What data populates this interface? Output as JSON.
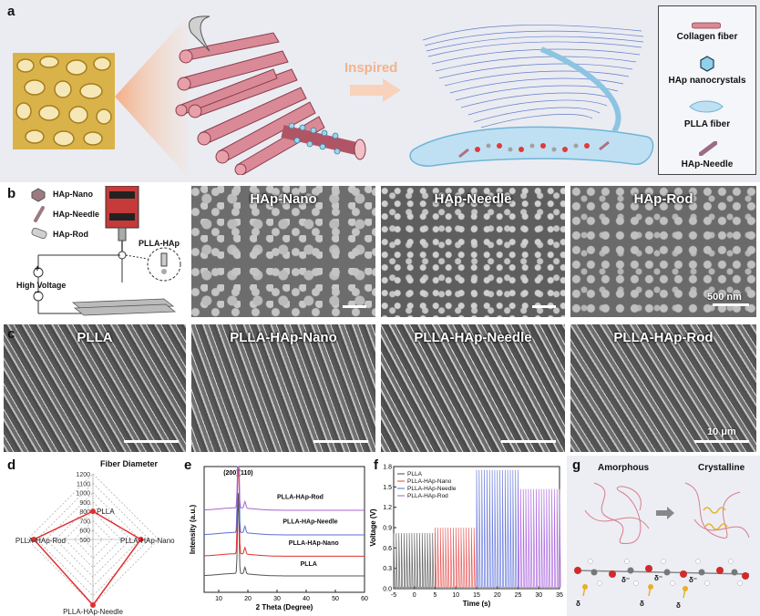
{
  "panel_labels": {
    "a": "a",
    "b": "b",
    "c": "c",
    "d": "d",
    "e": "e",
    "f": "f",
    "g": "g"
  },
  "panel_a": {
    "inspired": "Inspired",
    "legend": [
      "Collagen fiber",
      "HAp nanocrystals",
      "PLLA fiber",
      "HAp-Needle"
    ]
  },
  "panel_b": {
    "legend": [
      "HAp-Nano",
      "HAp-Needle",
      "HAp-Rod"
    ],
    "plla_hap": "PLLA-HAp",
    "high_voltage": "High Voltage",
    "plus": "+",
    "minus": "−",
    "sem_titles": [
      "HAp-Nano",
      "HAp-Needle",
      "HAp-Rod"
    ],
    "scale": "500 nm"
  },
  "panel_c": {
    "sem_titles": [
      "PLLA",
      "PLLA-HAp-Nano",
      "PLLA-HAp-Needle",
      "PLLA-HAp-Rod"
    ],
    "scale": "10 μm"
  },
  "chart_data": [
    {
      "type": "radar",
      "title": "Fiber Diameter",
      "axes": [
        "PLLA",
        "PLLA-HAp-Nano",
        "PLLA-HAp-Needle",
        "PLLA-HAp-Rod"
      ],
      "ticks": [
        500,
        600,
        700,
        800,
        900,
        1000,
        1100,
        1200
      ],
      "range": [
        500,
        1200
      ],
      "values": [
        800,
        1010,
        1200,
        1130
      ],
      "color": "#e03030"
    },
    {
      "type": "line",
      "xlabel": "2 Theta (Degree)",
      "ylabel": "Intensity (a.u.)",
      "xlim": [
        5,
        60
      ],
      "xticks": [
        10,
        20,
        30,
        40,
        50,
        60
      ],
      "peak_label": "(200)(110)",
      "peak_x": 16.7,
      "series": [
        {
          "name": "PLLA",
          "color": "#555555",
          "baseline": 1.0,
          "peak": 5
        },
        {
          "name": "PLLA-HAp-Nano",
          "color": "#e03030",
          "baseline": 2.2,
          "peak": 8
        },
        {
          "name": "PLLA-HAp-Needle",
          "color": "#5a6fd6",
          "baseline": 3.5,
          "peak": 8
        },
        {
          "name": "PLLA-HAp-Rod",
          "color": "#a565d6",
          "baseline": 5.0,
          "peak": 5
        }
      ]
    },
    {
      "type": "line",
      "xlabel": "Time (s)",
      "ylabel": "Voltage (V)",
      "xlim": [
        -5,
        35
      ],
      "ylim": [
        0,
        1.8
      ],
      "xticks": [
        -5,
        0,
        5,
        10,
        15,
        20,
        25,
        30,
        35
      ],
      "yticks": [
        0.0,
        0.3,
        0.6,
        0.9,
        1.2,
        1.5,
        1.8
      ],
      "ytick_labels": [
        "0.0",
        "0.3",
        "0.6",
        "0.9",
        "1.2",
        "1.5",
        "1.8"
      ],
      "series": [
        {
          "name": "PLLA",
          "color": "#666666",
          "t_range": [
            -5,
            5
          ],
          "amplitude": 0.82
        },
        {
          "name": "PLLA-HAp-Nano",
          "color": "#e86060",
          "t_range": [
            5,
            15
          ],
          "amplitude": 0.9
        },
        {
          "name": "PLLA-HAp-Needle",
          "color": "#7080e0",
          "t_range": [
            15,
            25
          ],
          "amplitude": 1.75
        },
        {
          "name": "PLLA-HAp-Rod",
          "color": "#b070e0",
          "t_range": [
            25,
            35
          ],
          "amplitude": 1.47
        }
      ]
    }
  ],
  "panel_g": {
    "amorphous": "Amorphous",
    "crystalline": "Crystalline",
    "charge": "δ⁻",
    "charge2": "δ"
  }
}
